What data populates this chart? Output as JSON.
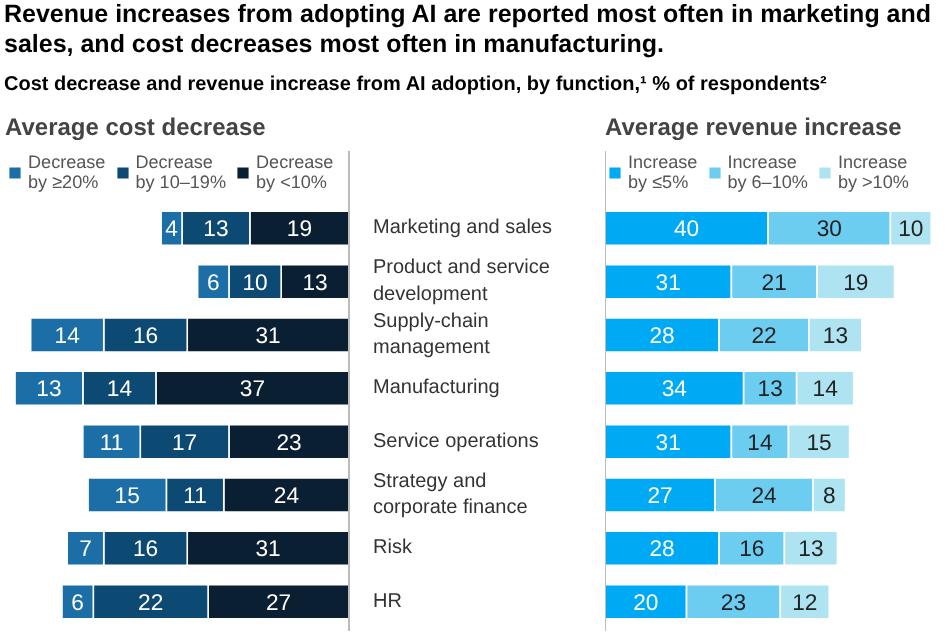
{
  "chart_data": [
    {
      "type": "bar",
      "orientation": "horizontal",
      "stacked": true,
      "data_labels": true,
      "legend": "top",
      "grid": false,
      "tick_labels": "y",
      "title": "Average cost decrease",
      "annotations": [
        "Revenue increases from adopting AI are reported most often in marketing and sales, and cost decreases most often in manufacturing.",
        "Cost decrease and revenue increase from AI adoption, by function,¹ % of respondents²"
      ],
      "categories": [
        "Marketing and sales",
        "Product and service development",
        "Supply-chain management",
        "Manufacturing",
        "Service operations",
        "Strategy and corporate finance",
        "Risk",
        "HR"
      ],
      "series": [
        {
          "name": "Decrease by <10%",
          "color": "#0b1f33",
          "values": [
            19,
            13,
            31,
            37,
            23,
            24,
            31,
            27
          ]
        },
        {
          "name": "Decrease by 10–19%",
          "color": "#0d4a73",
          "values": [
            13,
            10,
            16,
            14,
            17,
            11,
            16,
            22
          ]
        },
        {
          "name": "Decrease by ≥20%",
          "color": "#1b6fa6",
          "values": [
            4,
            6,
            14,
            13,
            11,
            15,
            7,
            6
          ]
        }
      ]
    },
    {
      "type": "bar",
      "orientation": "horizontal",
      "stacked": true,
      "data_labels": true,
      "legend": "top",
      "grid": false,
      "tick_labels": false,
      "title": "Average revenue increase",
      "categories": [
        null,
        null,
        null,
        null,
        null,
        null,
        null,
        null
      ],
      "series": [
        {
          "name": "Increase by ≤5%",
          "color": "#00a9f4",
          "values": [
            40,
            31,
            28,
            34,
            31,
            27,
            28,
            20
          ]
        },
        {
          "name": "Increase by 6–10%",
          "color": "#6ccdf0",
          "values": [
            30,
            21,
            22,
            13,
            14,
            24,
            16,
            23
          ]
        },
        {
          "name": "Increase by >10%",
          "color": "#aee3f1",
          "values": [
            10,
            19,
            13,
            14,
            15,
            8,
            13,
            12
          ]
        }
      ]
    }
  ]
}
